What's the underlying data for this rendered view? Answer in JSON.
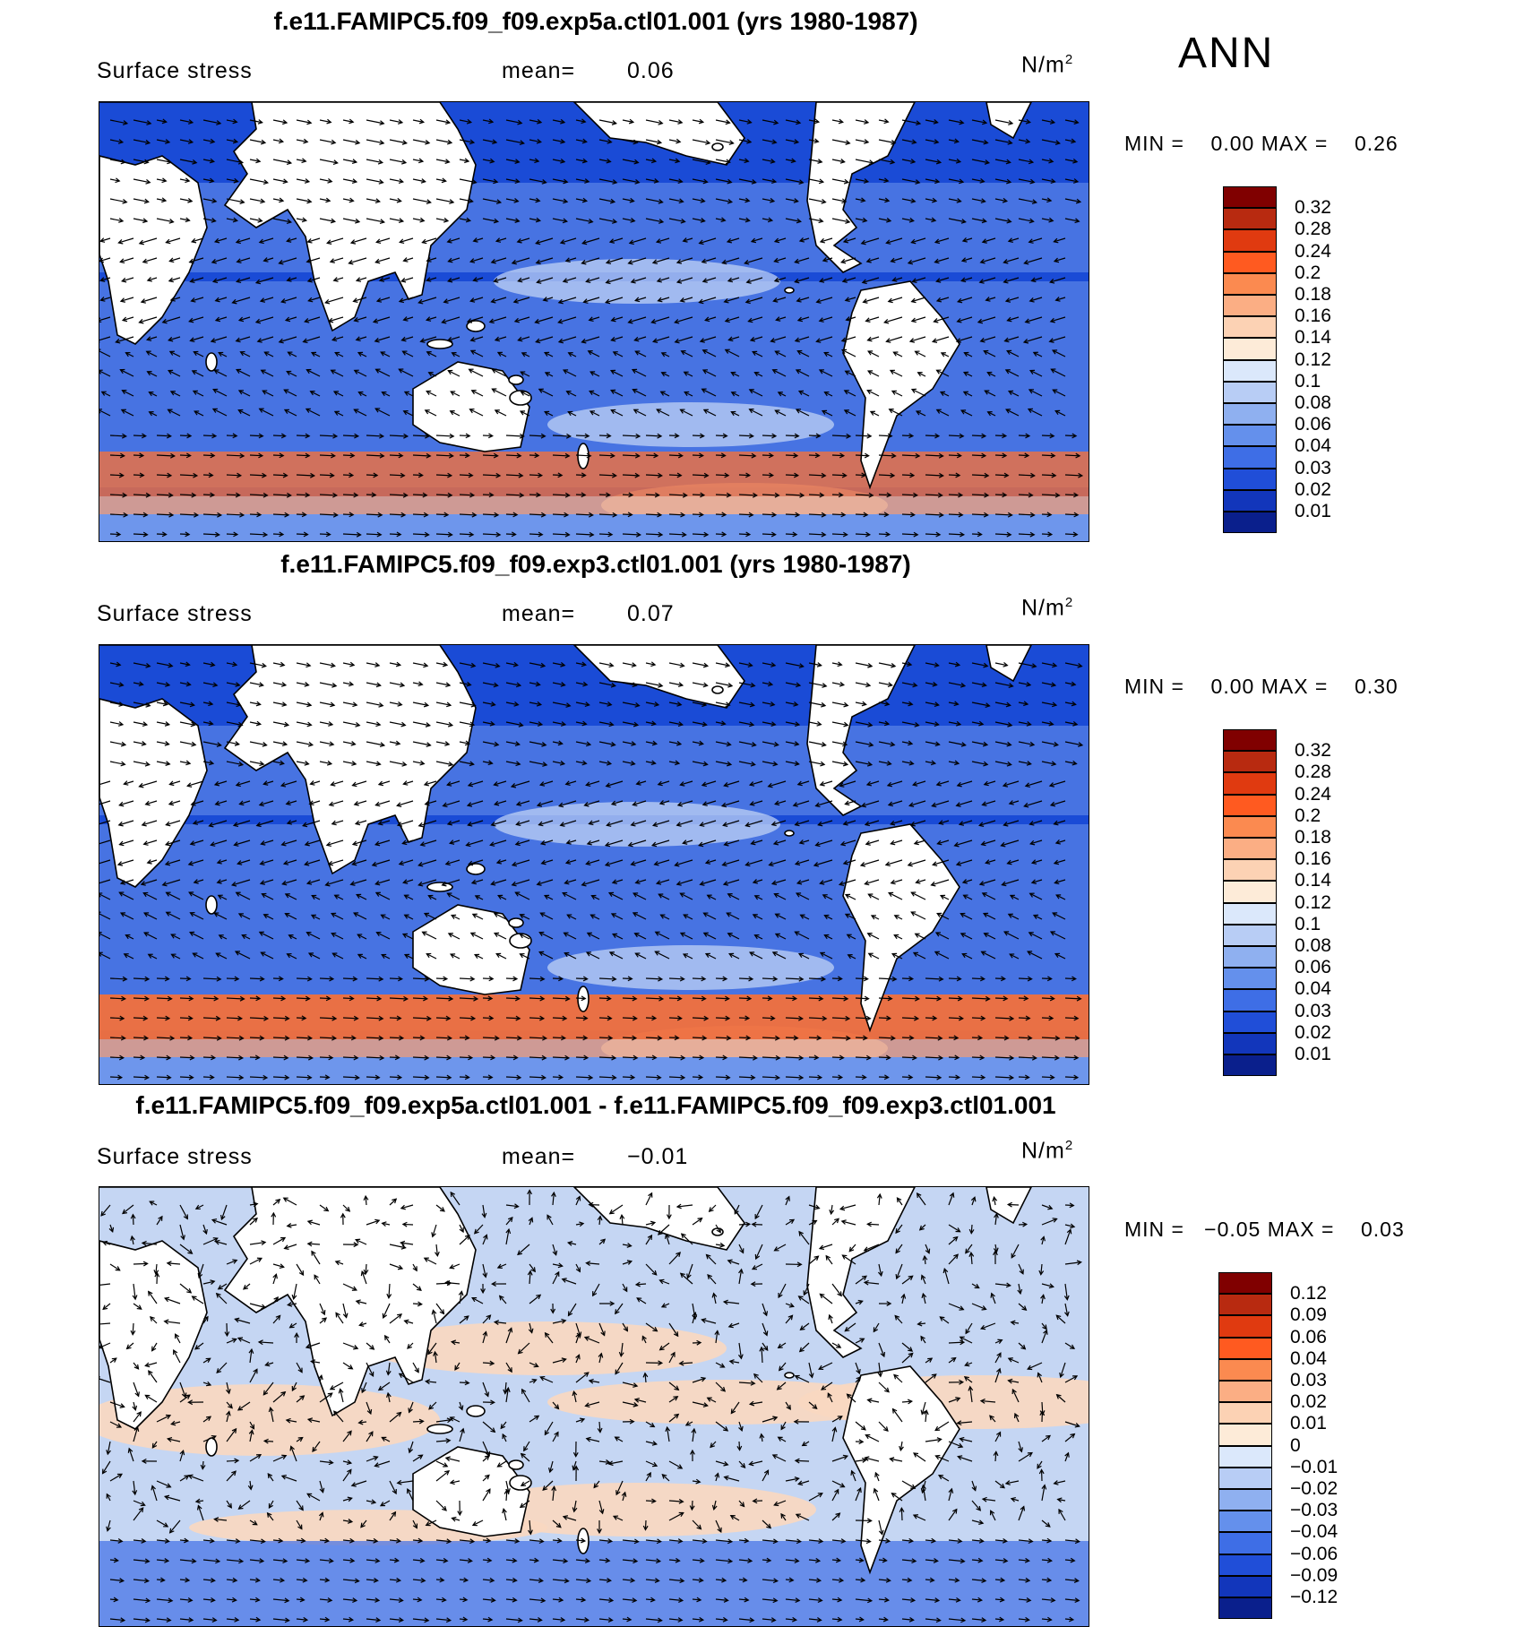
{
  "season": "ANN",
  "units_base": "N/m",
  "units_exp": "2",
  "colors": {
    "land": "#ffffff",
    "ocean_low": "#1a4bd6",
    "ocean_mid": "#6e96ec",
    "ocean_light": "#c8d8f6",
    "storm_track": "#f2703c",
    "diff_pos": "#f9d8c0",
    "diff_neg": "#c5d6f3"
  },
  "panels": [
    {
      "title": "f.e11.FAMIPC5.f09_f09.exp5a.ctl01.001 (yrs 1980-1987)",
      "variable": "Surface stress",
      "mean_label": "mean=",
      "mean_value": "0.06",
      "min_label": "MIN =",
      "min_value": "0.00",
      "max_label": "MAX =",
      "max_value": "0.26",
      "kind": "field",
      "colorbar": {
        "colors": [
          "#800000",
          "#b82a10",
          "#e03a10",
          "#ff5a20",
          "#fb8a50",
          "#fbae84",
          "#fcd2b4",
          "#fdebd8",
          "#dbe8fb",
          "#b8cdf5",
          "#8fb0f0",
          "#6490ec",
          "#3e6ee6",
          "#204ed8",
          "#1236bb",
          "#0a1f8c"
        ],
        "labels": [
          "0.32",
          "0.28",
          "0.24",
          "0.2",
          "0.18",
          "0.16",
          "0.14",
          "0.12",
          "0.1",
          "0.08",
          "0.06",
          "0.04",
          "0.03",
          "0.02",
          "0.01"
        ]
      }
    },
    {
      "title": "f.e11.FAMIPC5.f09_f09.exp3.ctl01.001 (yrs 1980-1987)",
      "variable": "Surface stress",
      "mean_label": "mean=",
      "mean_value": "0.07",
      "min_label": "MIN =",
      "min_value": "0.00",
      "max_label": "MAX =",
      "max_value": "0.30",
      "kind": "field",
      "colorbar": {
        "colors": [
          "#800000",
          "#b82a10",
          "#e03a10",
          "#ff5a20",
          "#fb8a50",
          "#fbae84",
          "#fcd2b4",
          "#fdebd8",
          "#dbe8fb",
          "#b8cdf5",
          "#8fb0f0",
          "#6490ec",
          "#3e6ee6",
          "#204ed8",
          "#1236bb",
          "#0a1f8c"
        ],
        "labels": [
          "0.32",
          "0.28",
          "0.24",
          "0.2",
          "0.18",
          "0.16",
          "0.14",
          "0.12",
          "0.1",
          "0.08",
          "0.06",
          "0.04",
          "0.03",
          "0.02",
          "0.01"
        ]
      }
    },
    {
      "title": "f.e11.FAMIPC5.f09_f09.exp5a.ctl01.001 - f.e11.FAMIPC5.f09_f09.exp3.ctl01.001",
      "variable": "Surface stress",
      "mean_label": "mean=",
      "mean_value": "−0.01",
      "min_label": "MIN =",
      "min_value": "−0.05",
      "max_label": "MAX =",
      "max_value": "0.03",
      "kind": "diff",
      "colorbar": {
        "colors": [
          "#800000",
          "#b82a10",
          "#e03a10",
          "#ff5a20",
          "#fb8a50",
          "#fbae84",
          "#fcd2b4",
          "#fdebd8",
          "#dbe8fb",
          "#b8cdf5",
          "#8fb0f0",
          "#6490ec",
          "#3e6ee6",
          "#204ed8",
          "#1236bb",
          "#0a1f8c"
        ],
        "labels": [
          "0.12",
          "0.09",
          "0.06",
          "0.04",
          "0.03",
          "0.02",
          "0.01",
          "0",
          "−0.01",
          "−0.02",
          "−0.03",
          "−0.04",
          "−0.06",
          "−0.09",
          "−0.12"
        ]
      }
    }
  ]
}
